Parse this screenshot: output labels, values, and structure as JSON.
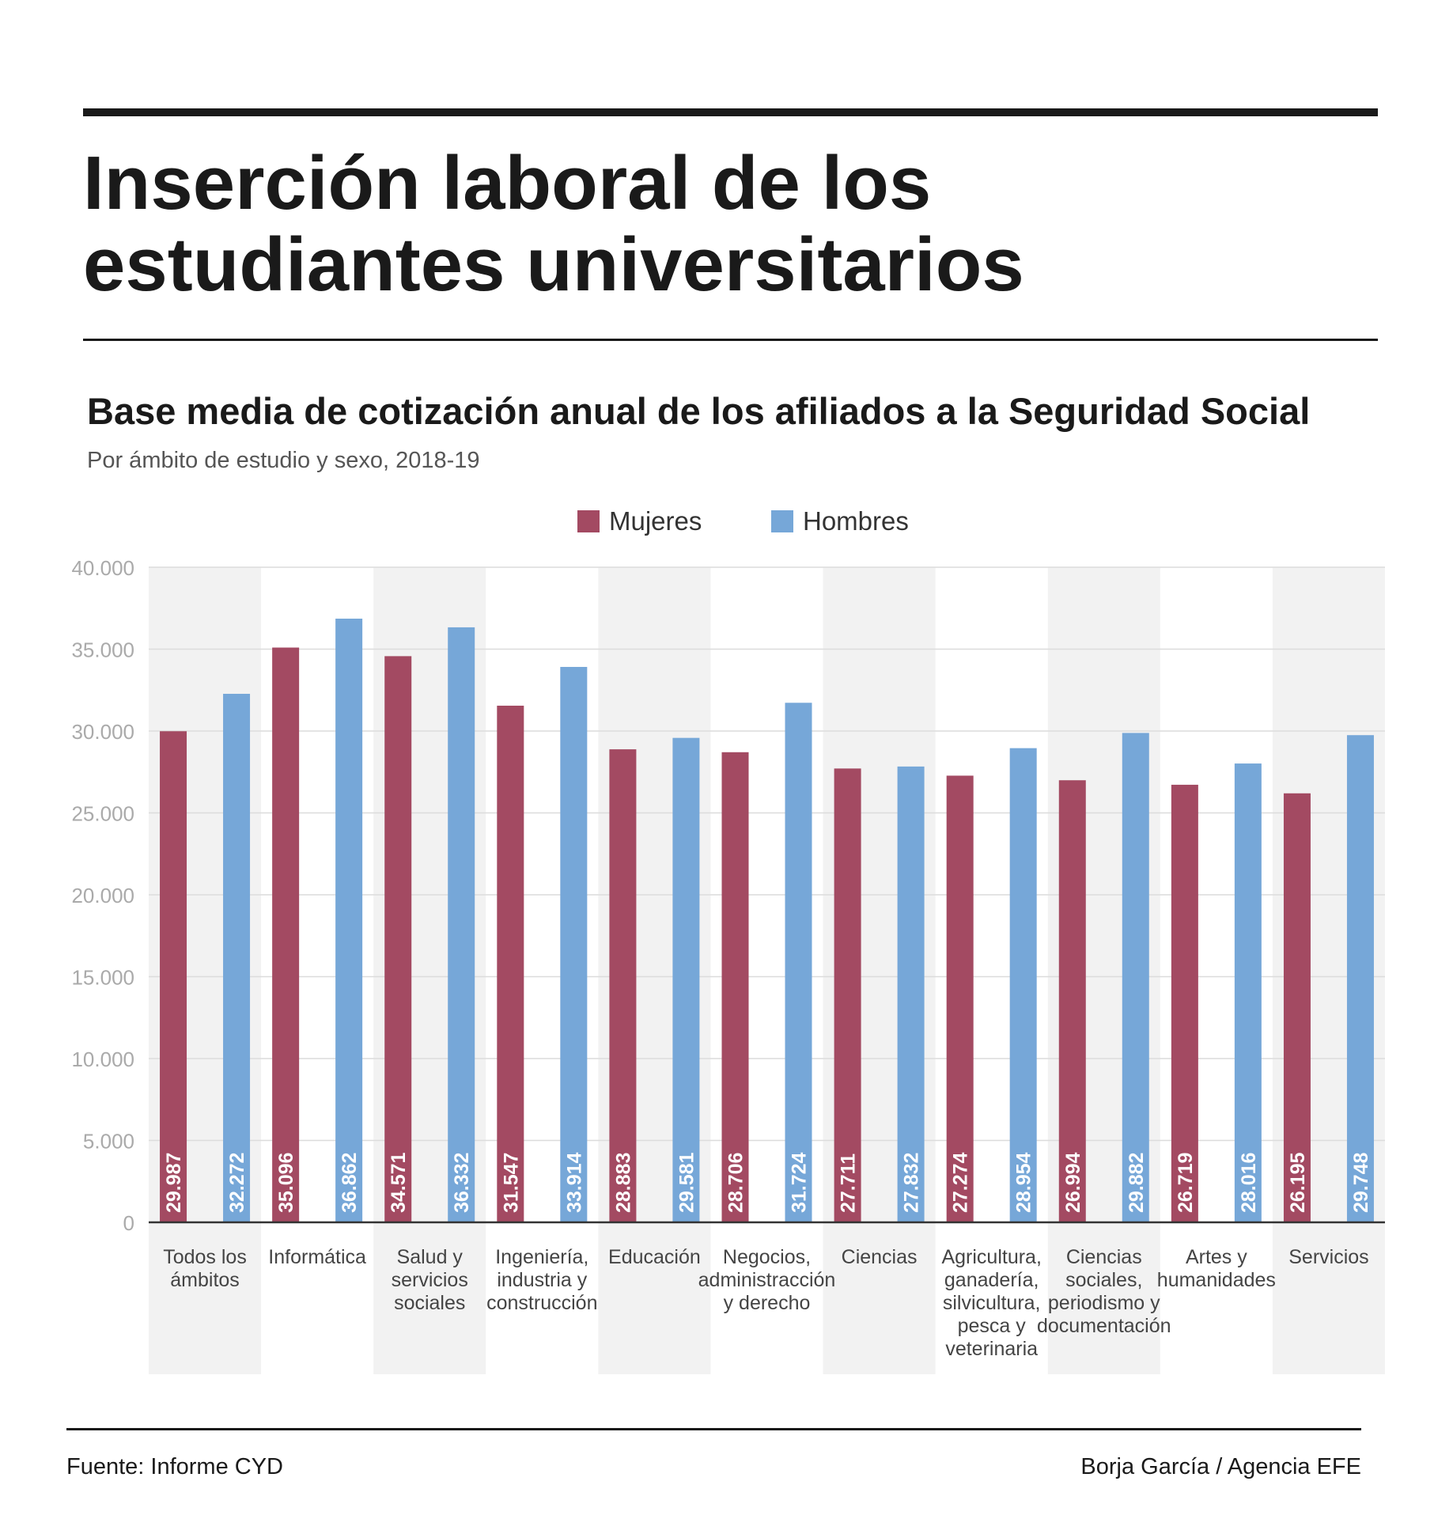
{
  "header": {
    "title_line1": "Inserción laboral de los",
    "title_line2": "estudiantes universitarios"
  },
  "subtitle": "Base media de cotización anual de los afiliados a la Seguridad Social",
  "caption": "Por ámbito de estudio y sexo, 2018-19",
  "footer": {
    "source": "Fuente: Informe CYD",
    "credit": "Borja García / Agencia EFE"
  },
  "chart_data": {
    "type": "bar",
    "title": "Base media de cotización anual de los afiliados a la Seguridad Social",
    "xlabel": "",
    "ylabel": "",
    "ylim": [
      0,
      40000
    ],
    "yticks": [
      {
        "value": 0,
        "label": "0"
      },
      {
        "value": 5000,
        "label": "5.000"
      },
      {
        "value": 10000,
        "label": "10.000"
      },
      {
        "value": 15000,
        "label": "15.000"
      },
      {
        "value": 20000,
        "label": "20.000"
      },
      {
        "value": 25000,
        "label": "25.000"
      },
      {
        "value": 30000,
        "label": "30.000"
      },
      {
        "value": 35000,
        "label": "35.000"
      },
      {
        "value": 40000,
        "label": "40.000"
      }
    ],
    "grid": true,
    "legend_position": "top-center",
    "categories": [
      [
        "Todos los",
        "ámbitos"
      ],
      [
        "Informática"
      ],
      [
        "Salud y",
        "servicios",
        "sociales"
      ],
      [
        "Ingeniería,",
        "industria y",
        "construcción"
      ],
      [
        "Educación"
      ],
      [
        "Negocios,",
        "administracción",
        "y derecho"
      ],
      [
        "Ciencias"
      ],
      [
        "Agricultura,",
        "ganadería,",
        "silvicultura,",
        "pesca y",
        "veterinaria"
      ],
      [
        "Ciencias",
        "sociales,",
        "periodismo y",
        "documentación"
      ],
      [
        "Artes y",
        "humanidades"
      ],
      [
        "Servicios"
      ]
    ],
    "series": [
      {
        "name": "Mujeres",
        "color": "#a34a62",
        "values": [
          29987,
          35096,
          34571,
          31547,
          28883,
          28706,
          27711,
          27274,
          26994,
          26719,
          26195
        ],
        "labels": [
          "29.987",
          "35.096",
          "34.571",
          "31.547",
          "28.883",
          "28.706",
          "27.711",
          "27.274",
          "26.994",
          "26.719",
          "26.195"
        ]
      },
      {
        "name": "Hombres",
        "color": "#76a7d8",
        "values": [
          32272,
          36862,
          36332,
          33914,
          29581,
          31724,
          27832,
          28954,
          29882,
          28016,
          29748
        ],
        "labels": [
          "32.272",
          "36.862",
          "36.332",
          "33.914",
          "29.581",
          "31.724",
          "27.832",
          "28.954",
          "29.882",
          "28.016",
          "29.748"
        ]
      }
    ]
  }
}
